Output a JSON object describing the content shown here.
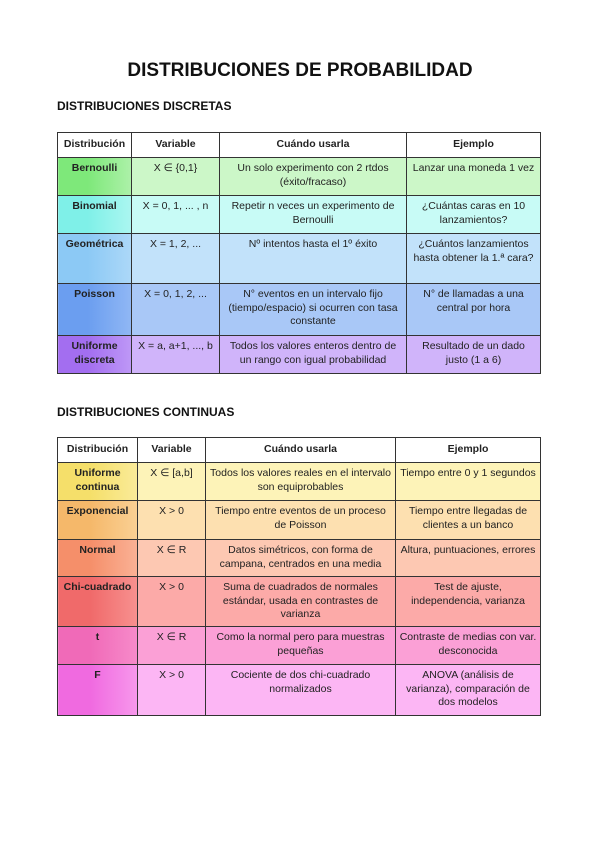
{
  "title": "DISTRIBUCIONES DE PROBABILIDAD",
  "discrete": {
    "heading": "DISTRIBUCIONES DISCRETAS",
    "headers": [
      "Distribución",
      "Variable",
      "Cuándo usarla",
      "Ejemplo"
    ],
    "rows": [
      {
        "name": "Bernoulli",
        "variable": "X ∈ {0,1}",
        "when": "Un solo experimento con 2 rtdos (éxito/fracaso)",
        "example": "Lanzar una moneda 1 vez",
        "color": "#7ee87a",
        "light": "#ccf7c8"
      },
      {
        "name": "Binomial",
        "variable": "X = 0, 1, ... , n",
        "when": "Repetir n veces un experimento de Bernoulli",
        "example": "¿Cuántas caras en 10 lanzamientos?",
        "color": "#7ff0e8",
        "light": "#c8fbf6"
      },
      {
        "name": "Geométrica",
        "variable": "X = 1, 2, ...",
        "when": "Nº intentos hasta el 1º éxito",
        "example": "¿Cuántos lanzamientos hasta obtener la 1.ª cara?",
        "color": "#8cc9f5",
        "light": "#c2e2fa"
      },
      {
        "name": "Poisson",
        "variable": "X = 0, 1, 2, ...",
        "when": "N° eventos en un intervalo fijo (tiempo/espacio) si ocurren con tasa constante",
        "example": "N° de llamadas a una central por hora",
        "color": "#6b9ef0",
        "light": "#a9c8f7"
      },
      {
        "name": "Uniforme discreta",
        "variable": "X = a, a+1, ..., b",
        "when": "Todos los valores enteros dentro de un rango con igual probabilidad",
        "example": "Resultado de un dado justo (1 a 6)",
        "color": "#a36ef0",
        "light": "#d0b4fa"
      }
    ]
  },
  "continuous": {
    "heading": "DISTRIBUCIONES CONTINUAS",
    "headers": [
      "Distribución",
      "Variable",
      "Cuándo usarla",
      "Ejemplo"
    ],
    "rows": [
      {
        "name": "Uniforme continua",
        "variable": "X ∈ [a,b]",
        "when": "Todos los valores reales en el intervalo son equiprobables",
        "example": "Tiempo entre 0 y 1 segundos",
        "color": "#f5df6a",
        "light": "#fdf3b8"
      },
      {
        "name": "Exponencial",
        "variable": "X > 0",
        "when": "Tiempo entre eventos de un proceso de Poisson",
        "example": "Tiempo entre llegadas de clientes a un banco",
        "color": "#f5b86a",
        "light": "#fde0b0"
      },
      {
        "name": "Normal",
        "variable": "X ∈ R",
        "when": "Datos simétricos, con forma de campana, centrados en una media",
        "example": "Altura, puntuaciones, errores",
        "color": "#f58f6a",
        "light": "#fdc8b2"
      },
      {
        "name": "Chi-cuadrado",
        "variable": "X > 0",
        "when": "Suma de cuadrados de normales estándar, usada en contrastes de varianza",
        "example": "Test de ajuste, independencia, varianza",
        "color": "#f06a6a",
        "light": "#fcaaa8"
      },
      {
        "name": "t",
        "variable": "X ∈ R",
        "when": "Como la normal pero para muestras pequeñas",
        "example": "Contraste de medias con var. desconocida",
        "color": "#f06ab8",
        "light": "#fba0d6"
      },
      {
        "name": "F",
        "variable": "X > 0",
        "when": "Cociente de dos chi-cuadrado normalizados",
        "example": "ANOVA (análisis de varianza), comparación de dos modelos",
        "color": "#f06ae0",
        "light": "#fcb6f4"
      }
    ]
  }
}
